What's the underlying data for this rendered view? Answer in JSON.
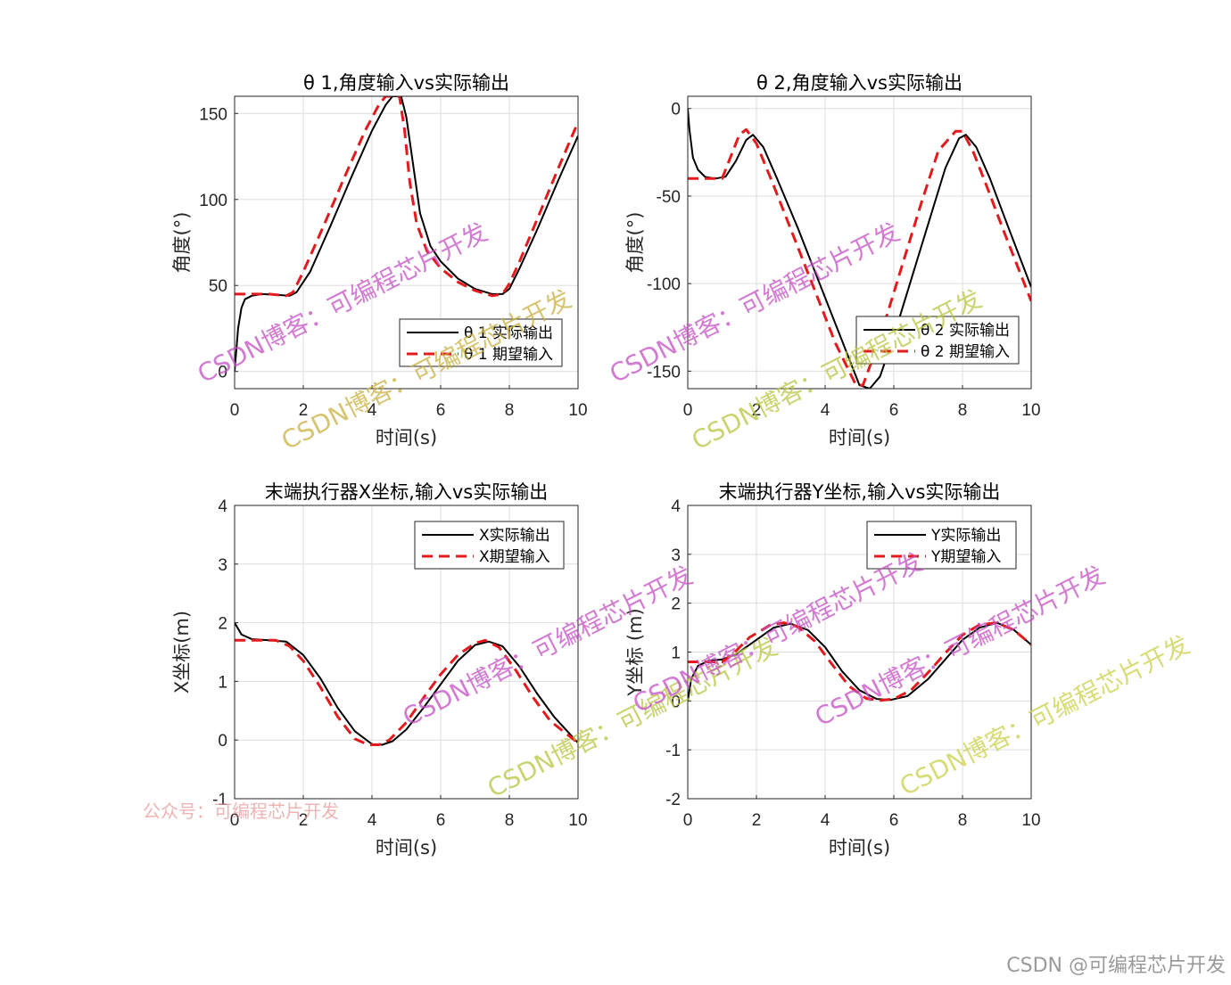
{
  "figure": {
    "footer_text": "CSDN @可编程芯片开发",
    "colors": {
      "actual": "#000000",
      "expected": "#e41a1c",
      "grid": "#dedede",
      "axis": "#262626",
      "background": "#ffffff"
    }
  },
  "watermarks": [
    {
      "text": "CSDN博客：可编程芯片开发",
      "color": "#c44fc4"
    },
    {
      "text": "CSDN博客：可编程芯片开发",
      "color": "#c8b040"
    },
    {
      "text": "CSDN博客：可编程芯片开发",
      "color": "#c44fc4"
    },
    {
      "text": "CSDN博客：可编程芯片开发",
      "color": "#c44fc4"
    },
    {
      "text": "CSDN博客：可编程芯片开发",
      "color": "#b7c540"
    },
    {
      "text": "CSDN博客：可编程芯片开发",
      "color": "#c44fc4"
    },
    {
      "text": "CSDN博客：可编程芯片开发",
      "color": "#b7c540"
    },
    {
      "text": "CSDN博客：可编程芯片开发",
      "color": "#c44fc4"
    },
    {
      "text": "CSDN博客：可编程芯片开发",
      "color": "#c9d04a"
    },
    {
      "text": "公众号：可编程芯片开发",
      "color": "#e89a9a"
    }
  ],
  "chart_data": [
    {
      "type": "line",
      "title": "θ 1,角度输入vs实际输出",
      "xlabel": "时间(s)",
      "ylabel": "角度(°)",
      "xlim": [
        0,
        10
      ],
      "ylim": [
        -10,
        160
      ],
      "xticks": [
        0,
        2,
        4,
        6,
        8,
        10
      ],
      "yticks": [
        0,
        50,
        100,
        150
      ],
      "grid": true,
      "legend_position": "bottom-right",
      "series": [
        {
          "name": "θ 1 实际输出",
          "style": "solid",
          "x": [
            0,
            0.1,
            0.2,
            0.3,
            0.5,
            0.8,
            1.2,
            1.6,
            1.8,
            2.2,
            2.8,
            3.4,
            4.0,
            4.4,
            4.6,
            4.85,
            5.0,
            5.2,
            5.4,
            5.7,
            6.0,
            6.5,
            7.0,
            7.5,
            7.8,
            8.0,
            8.3,
            8.8,
            9.4,
            10.0
          ],
          "y": [
            0,
            25,
            37,
            42,
            44,
            45,
            44.5,
            44,
            46,
            58,
            85,
            113,
            140,
            155,
            160,
            160,
            148,
            120,
            92,
            73,
            64,
            54,
            48,
            45,
            45,
            48,
            60,
            82,
            110,
            137
          ]
        },
        {
          "name": "θ 1 期望输入",
          "style": "dashed",
          "x": [
            0,
            1.0,
            1.5,
            1.7,
            2.0,
            2.6,
            3.2,
            3.8,
            4.2,
            4.4,
            4.55,
            4.8,
            4.95,
            5.1,
            5.3,
            5.6,
            6.0,
            6.5,
            7.0,
            7.5,
            7.8,
            8.0,
            8.3,
            8.8,
            9.4,
            10.0
          ],
          "y": [
            45,
            45,
            44,
            46,
            58,
            85,
            113,
            140,
            155,
            160,
            160,
            160,
            140,
            110,
            86,
            70,
            60,
            52,
            47,
            44,
            45,
            51,
            64,
            88,
            117,
            145
          ]
        }
      ]
    },
    {
      "type": "line",
      "title": "θ 2,角度输入vs实际输出",
      "xlabel": "时间(s)",
      "ylabel": "角度(°)",
      "xlim": [
        0,
        10
      ],
      "ylim": [
        -160,
        7
      ],
      "xticks": [
        0,
        2,
        4,
        6,
        8,
        10
      ],
      "yticks": [
        0,
        -50,
        -100,
        -150
      ],
      "grid": true,
      "legend_position": "bottom-right",
      "series": [
        {
          "name": "θ 2 实际输出",
          "style": "solid",
          "x": [
            0,
            0.05,
            0.15,
            0.3,
            0.5,
            0.8,
            1.1,
            1.4,
            1.7,
            1.9,
            2.2,
            2.6,
            3.2,
            3.8,
            4.4,
            5.0,
            5.3,
            5.6,
            6.0,
            6.5,
            7.0,
            7.5,
            7.9,
            8.1,
            8.4,
            8.8,
            9.3,
            10.0
          ],
          "y": [
            0,
            -12,
            -28,
            -35,
            -39,
            -40,
            -39,
            -30,
            -18,
            -15,
            -22,
            -40,
            -68,
            -98,
            -128,
            -158,
            -160,
            -153,
            -130,
            -98,
            -66,
            -34,
            -17,
            -15,
            -22,
            -40,
            -66,
            -102
          ]
        },
        {
          "name": "θ 2 期望输入",
          "style": "dashed",
          "x": [
            0,
            1.0,
            1.2,
            1.5,
            1.7,
            2.0,
            2.5,
            3.1,
            3.7,
            4.3,
            4.9,
            5.1,
            5.4,
            5.8,
            6.3,
            6.8,
            7.3,
            7.8,
            8.0,
            8.3,
            8.7,
            9.2,
            10.0
          ],
          "y": [
            -40,
            -40,
            -30,
            -15,
            -12,
            -20,
            -44,
            -74,
            -104,
            -134,
            -158,
            -158,
            -142,
            -118,
            -86,
            -54,
            -24,
            -13,
            -13,
            -24,
            -44,
            -70,
            -110
          ]
        }
      ]
    },
    {
      "type": "line",
      "title": "末端执行器X坐标,输入vs实际输出",
      "xlabel": "时间(s)",
      "ylabel": "X坐标(m)",
      "xlim": [
        0,
        10
      ],
      "ylim": [
        -1,
        4
      ],
      "xticks": [
        0,
        2,
        4,
        6,
        8,
        10
      ],
      "yticks": [
        -1,
        0,
        1,
        2,
        3,
        4
      ],
      "grid": true,
      "legend_position": "top-right",
      "series": [
        {
          "name": "X实际输出",
          "style": "solid",
          "x": [
            0,
            0.2,
            0.5,
            1.0,
            1.5,
            2.0,
            2.5,
            3.0,
            3.5,
            4.0,
            4.3,
            4.6,
            5.0,
            5.5,
            6.0,
            6.5,
            7.0,
            7.4,
            7.8,
            8.3,
            8.8,
            9.3,
            10.0
          ],
          "y": [
            2.0,
            1.8,
            1.72,
            1.7,
            1.68,
            1.45,
            1.05,
            0.55,
            0.15,
            -0.07,
            -0.08,
            -0.02,
            0.18,
            0.55,
            0.95,
            1.35,
            1.62,
            1.68,
            1.6,
            1.25,
            0.8,
            0.4,
            -0.05
          ]
        },
        {
          "name": "X期望输入",
          "style": "dashed",
          "x": [
            0,
            1.2,
            1.6,
            2.0,
            2.5,
            3.0,
            3.5,
            3.9,
            4.2,
            4.5,
            5.0,
            5.5,
            6.0,
            6.5,
            7.0,
            7.3,
            7.7,
            8.2,
            8.7,
            9.2,
            10.0
          ],
          "y": [
            1.7,
            1.7,
            1.6,
            1.35,
            0.9,
            0.4,
            0.02,
            -0.08,
            -0.08,
            0.0,
            0.3,
            0.72,
            1.12,
            1.45,
            1.65,
            1.7,
            1.58,
            1.18,
            0.72,
            0.32,
            -0.05
          ]
        }
      ]
    },
    {
      "type": "line",
      "title": "末端执行器Y坐标,输入vs实际输出",
      "xlabel": "时间(s)",
      "ylabel": "Y坐标 (m)",
      "xlim": [
        0,
        10
      ],
      "ylim": [
        -2,
        4
      ],
      "xticks": [
        0,
        2,
        4,
        6,
        8,
        10
      ],
      "yticks": [
        -2,
        -1,
        0,
        1,
        2,
        3,
        4
      ],
      "grid": true,
      "legend_position": "top-right",
      "series": [
        {
          "name": "Y实际输出",
          "style": "solid",
          "x": [
            0,
            0.1,
            0.3,
            0.6,
            1.0,
            1.4,
            2.0,
            2.5,
            3.0,
            3.5,
            4.0,
            4.5,
            5.0,
            5.5,
            5.9,
            6.4,
            7.0,
            7.5,
            8.0,
            8.5,
            9.0,
            9.5,
            10.0
          ],
          "y": [
            0.0,
            0.45,
            0.72,
            0.82,
            0.85,
            0.95,
            1.25,
            1.5,
            1.58,
            1.45,
            1.1,
            0.6,
            0.22,
            0.04,
            0.02,
            0.1,
            0.45,
            0.85,
            1.25,
            1.5,
            1.6,
            1.45,
            1.15
          ]
        },
        {
          "name": "Y期望输入",
          "style": "dashed",
          "x": [
            0,
            1.0,
            1.3,
            1.8,
            2.4,
            2.8,
            3.2,
            3.7,
            4.2,
            4.7,
            5.2,
            5.6,
            6.0,
            6.5,
            7.0,
            7.5,
            8.0,
            8.5,
            9.0,
            9.5,
            10.0
          ],
          "y": [
            0.8,
            0.8,
            0.95,
            1.3,
            1.55,
            1.6,
            1.52,
            1.22,
            0.75,
            0.3,
            0.05,
            0.01,
            0.04,
            0.22,
            0.58,
            0.98,
            1.35,
            1.56,
            1.6,
            1.45,
            1.15
          ]
        }
      ]
    }
  ]
}
